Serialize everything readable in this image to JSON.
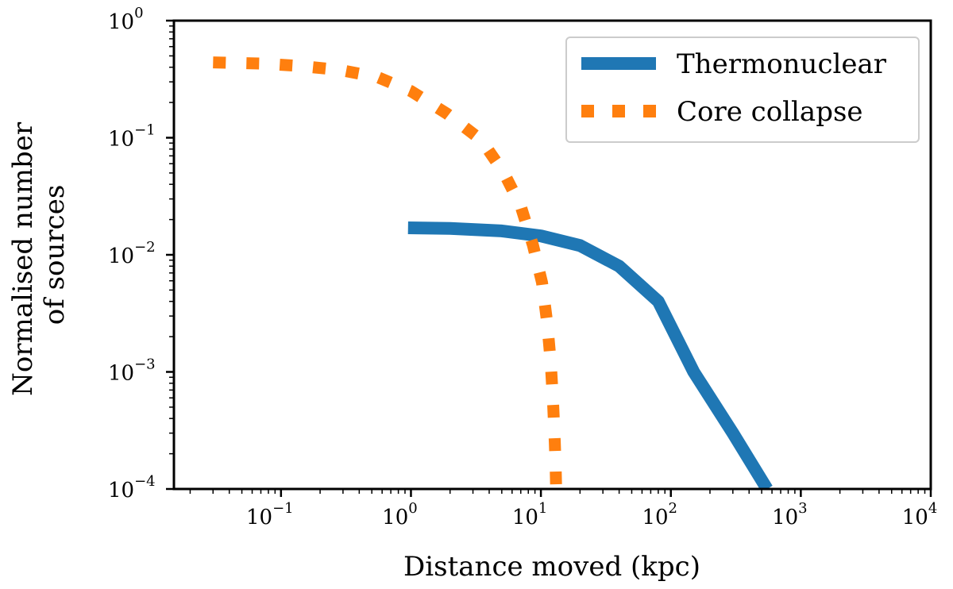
{
  "chart_data": {
    "type": "line",
    "title": "",
    "xlabel": "Distance moved (kpc)",
    "ylabel_lines": [
      "Normalised number",
      "of sources"
    ],
    "xscale": "log",
    "yscale": "log",
    "xlim": [
      0.015,
      10000
    ],
    "ylim": [
      0.0001,
      1
    ],
    "x_ticks": [
      {
        "value": 0.1,
        "base": "10",
        "exp": "−1"
      },
      {
        "value": 1,
        "base": "10",
        "exp": "0"
      },
      {
        "value": 10,
        "base": "10",
        "exp": "1"
      },
      {
        "value": 100,
        "base": "10",
        "exp": "2"
      },
      {
        "value": 1000,
        "base": "10",
        "exp": "3"
      },
      {
        "value": 10000,
        "base": "10",
        "exp": "4"
      }
    ],
    "y_ticks": [
      {
        "value": 1,
        "base": "10",
        "exp": "0"
      },
      {
        "value": 0.1,
        "base": "10",
        "exp": "−1"
      },
      {
        "value": 0.01,
        "base": "10",
        "exp": "−2"
      },
      {
        "value": 0.001,
        "base": "10",
        "exp": "−3"
      },
      {
        "value": 0.0001,
        "base": "10",
        "exp": "−4"
      }
    ],
    "legend_position": "top-right",
    "grid": false,
    "series": [
      {
        "name": "Thermonuclear",
        "color": "#1f77b4",
        "style": "solid",
        "x": [
          0.95,
          2,
          5,
          10,
          20,
          40,
          80,
          150,
          300,
          550
        ],
        "y": [
          0.017,
          0.0168,
          0.016,
          0.0145,
          0.012,
          0.008,
          0.004,
          0.001,
          0.0003,
          0.0001
        ]
      },
      {
        "name": "Core collapse",
        "color": "#ff7f0e",
        "style": "dotted",
        "x": [
          0.03,
          0.07,
          0.14,
          0.28,
          0.55,
          1.0,
          1.9,
          3.5,
          5.2,
          7.0,
          8.7,
          10.2,
          11.2,
          11.9,
          12.4,
          12.8,
          13.0,
          13.1
        ],
        "y": [
          0.44,
          0.43,
          0.41,
          0.38,
          0.33,
          0.25,
          0.16,
          0.095,
          0.05,
          0.026,
          0.012,
          0.0058,
          0.0026,
          0.0012,
          0.00055,
          0.00025,
          0.00015,
          0.0001
        ]
      }
    ]
  }
}
